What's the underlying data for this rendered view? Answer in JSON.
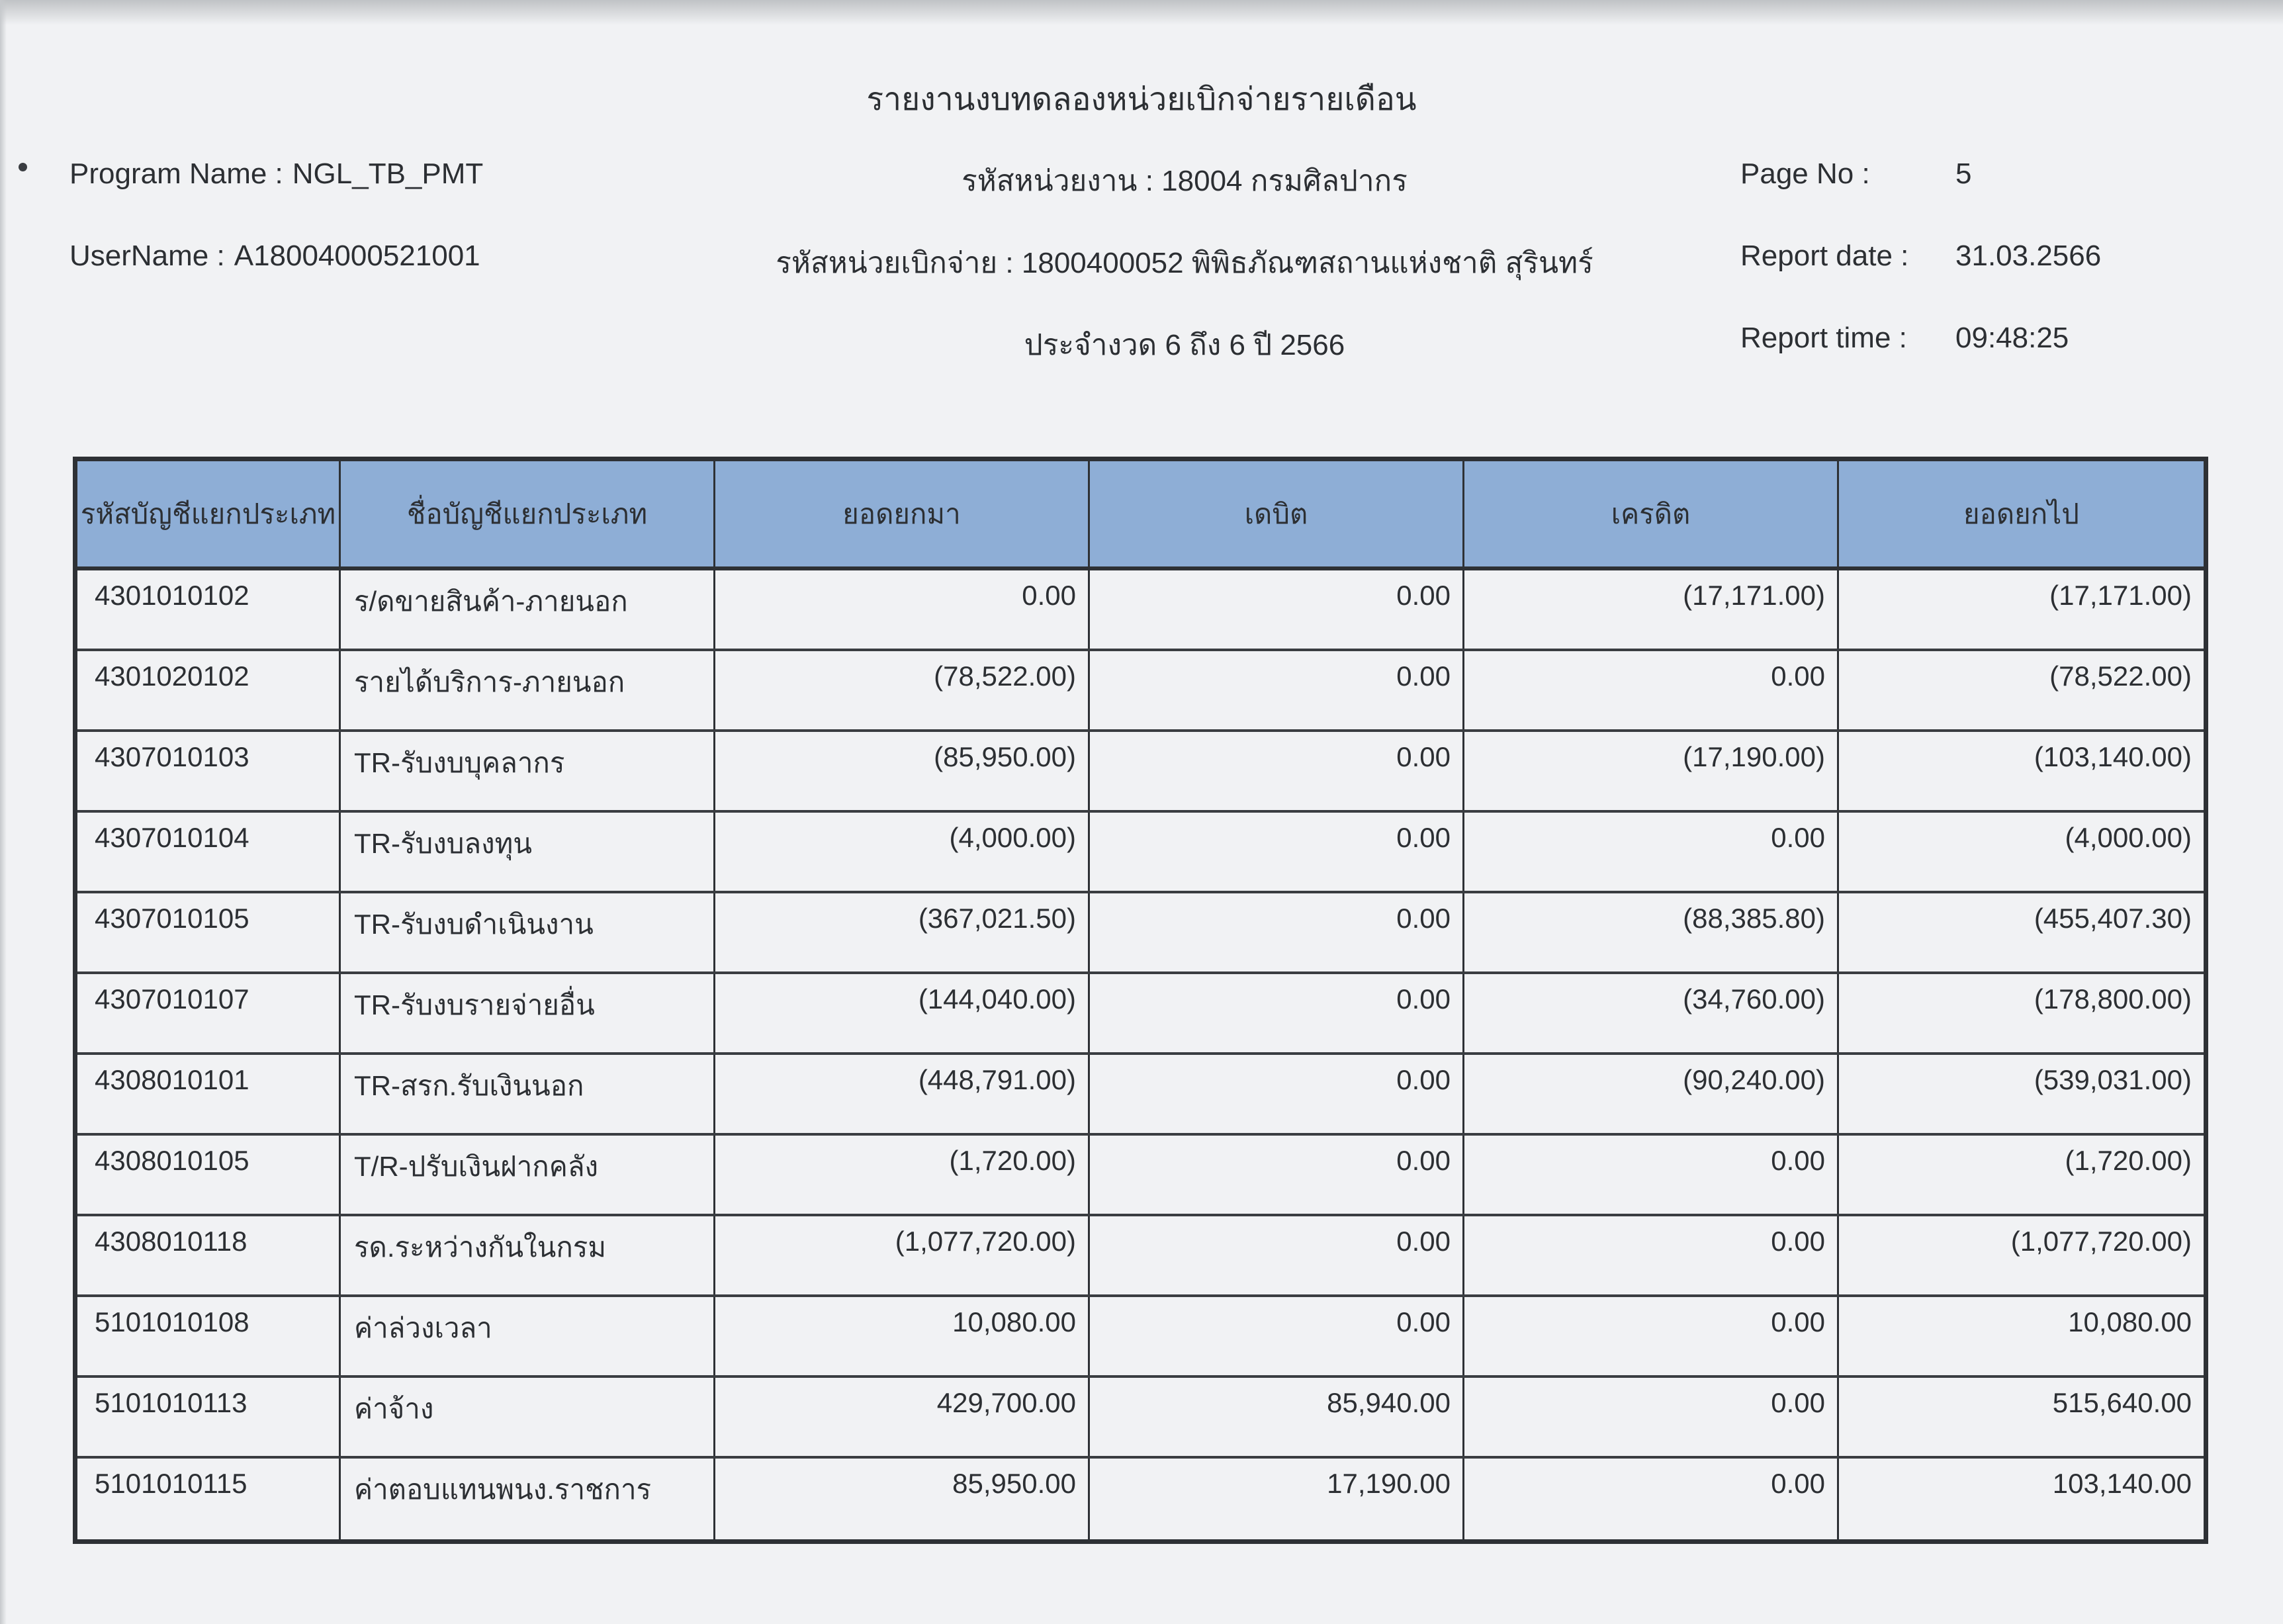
{
  "report": {
    "title": "รายงานงบทดลองหน่วยเบิกจ่ายรายเดือน",
    "program_name_label": "Program Name :",
    "program_name_value": "NGL_TB_PMT",
    "username_label": "UserName :",
    "username_value": "A18004000521001",
    "agency_line": "รหัสหน่วยงาน : 18004 กรมศิลปากร",
    "disburse_line": "รหัสหน่วยเบิกจ่าย : 1800400052 พิพิธภัณฑสถานแห่งชาติ สุรินทร์",
    "period_line": "ประจำงวด 6 ถึง 6 ปี 2566",
    "page_no_label": "Page No :",
    "page_no_value": "5",
    "report_date_label": "Report date :",
    "report_date_value": "31.03.2566",
    "report_time_label": "Report time :",
    "report_time_value": "09:48:25"
  },
  "table": {
    "columns": [
      "รหัสบัญชีแยกประเภท",
      "ชื่อบัญชีแยกประเภท",
      "ยอดยกมา",
      "เดบิต",
      "เครดิต",
      "ยอดยกไป"
    ],
    "rows": [
      [
        "4301010102",
        "ร/ดขายสินค้า-ภายนอก",
        "0.00",
        "0.00",
        "(17,171.00)",
        "(17,171.00)"
      ],
      [
        "4301020102",
        "รายได้บริการ-ภายนอก",
        "(78,522.00)",
        "0.00",
        "0.00",
        "(78,522.00)"
      ],
      [
        "4307010103",
        "TR-รับงบบุคลากร",
        "(85,950.00)",
        "0.00",
        "(17,190.00)",
        "(103,140.00)"
      ],
      [
        "4307010104",
        "TR-รับงบลงทุน",
        "(4,000.00)",
        "0.00",
        "0.00",
        "(4,000.00)"
      ],
      [
        "4307010105",
        "TR-รับงบดำเนินงาน",
        "(367,021.50)",
        "0.00",
        "(88,385.80)",
        "(455,407.30)"
      ],
      [
        "4307010107",
        "TR-รับงบรายจ่ายอื่น",
        "(144,040.00)",
        "0.00",
        "(34,760.00)",
        "(178,800.00)"
      ],
      [
        "4308010101",
        "TR-สรก.รับเงินนอก",
        "(448,791.00)",
        "0.00",
        "(90,240.00)",
        "(539,031.00)"
      ],
      [
        "4308010105",
        "T/R-ปรับเงินฝากคลัง",
        "(1,720.00)",
        "0.00",
        "0.00",
        "(1,720.00)"
      ],
      [
        "4308010118",
        "รด.ระหว่างกันในกรม",
        "(1,077,720.00)",
        "0.00",
        "0.00",
        "(1,077,720.00)"
      ],
      [
        "5101010108",
        "ค่าล่วงเวลา",
        "10,080.00",
        "0.00",
        "0.00",
        "10,080.00"
      ],
      [
        "5101010113",
        "ค่าจ้าง",
        "429,700.00",
        "85,940.00",
        "0.00",
        "515,640.00"
      ],
      [
        "5101010115",
        "ค่าตอบแทนพนง.ราชการ",
        "85,950.00",
        "17,190.00",
        "0.00",
        "103,140.00"
      ]
    ]
  },
  "colors": {
    "header_bg": "#8eaed6",
    "paper": "#f1f2f4",
    "border": "#2e3135",
    "text": "#2c2f33"
  }
}
